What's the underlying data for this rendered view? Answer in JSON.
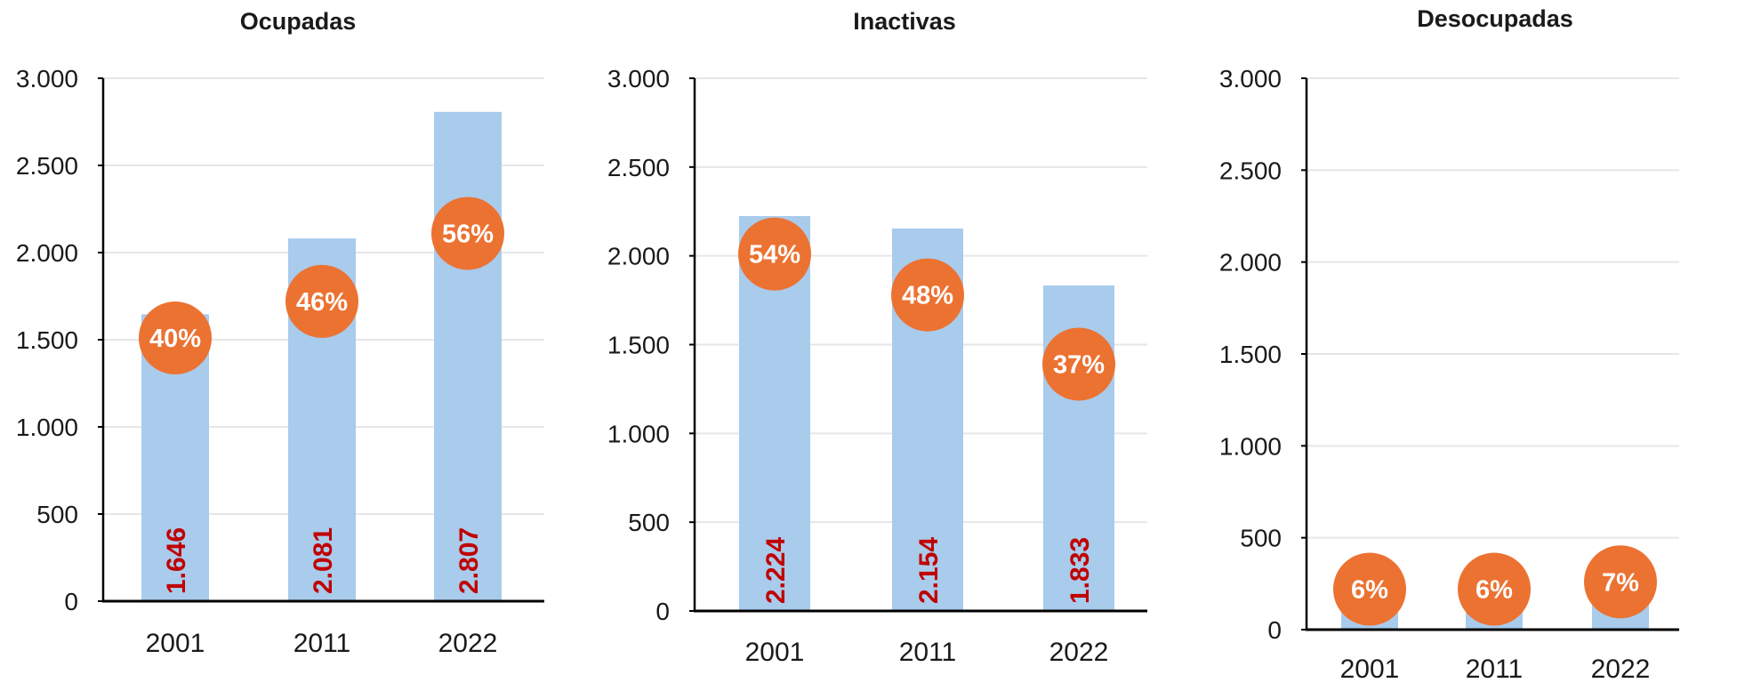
{
  "chart_data": [
    {
      "type": "bar",
      "title": "Ocupadas",
      "categories": [
        "2001",
        "2011",
        "2022"
      ],
      "values": [
        1646,
        2081,
        2807
      ],
      "value_labels": [
        "1.646",
        "2.081",
        "2.807"
      ],
      "percent_labels": [
        "40%",
        "46%",
        "56%"
      ],
      "percent_values": [
        1510,
        1720,
        2110
      ],
      "ylim": [
        0,
        3000
      ],
      "yticks": [
        0,
        500,
        1000,
        1500,
        2000,
        2500,
        3000
      ],
      "ytick_labels": [
        "0",
        "500",
        "1.000",
        "1.500",
        "2.000",
        "2.500",
        "3.000"
      ],
      "grid": true,
      "bar_color": "#a9cbec",
      "marker_color": "#ec7232",
      "value_label_color": "#c00000"
    },
    {
      "type": "bar",
      "title": "Inactivas",
      "categories": [
        "2001",
        "2011",
        "2022"
      ],
      "values": [
        2224,
        2154,
        1833
      ],
      "value_labels": [
        "2.224",
        "2.154",
        "1.833"
      ],
      "percent_labels": [
        "54%",
        "48%",
        "37%"
      ],
      "percent_values": [
        2010,
        1780,
        1390
      ],
      "ylim": [
        0,
        3000
      ],
      "yticks": [
        0,
        500,
        1000,
        1500,
        2000,
        2500,
        3000
      ],
      "ytick_labels": [
        "0",
        "500",
        "1.000",
        "1.500",
        "2.000",
        "2.500",
        "3.000"
      ],
      "grid": true,
      "bar_color": "#a9cbec",
      "marker_color": "#ec7232",
      "value_label_color": "#c00000"
    },
    {
      "type": "bar",
      "title": "Desocupadas",
      "categories": [
        "2001",
        "2011",
        "2022"
      ],
      "values": [
        230,
        225,
        275
      ],
      "value_labels": [
        "",
        "",
        ""
      ],
      "percent_labels": [
        "6%",
        "6%",
        "7%"
      ],
      "percent_values": [
        220,
        220,
        260
      ],
      "ylim": [
        0,
        3000
      ],
      "yticks": [
        0,
        500,
        1000,
        1500,
        2000,
        2500,
        3000
      ],
      "ytick_labels": [
        "0",
        "500",
        "1.000",
        "1.500",
        "2.000",
        "2.500",
        "3.000"
      ],
      "grid": true,
      "bar_color": "#a9cbec",
      "marker_color": "#ec7232",
      "value_label_color": "#c00000"
    }
  ]
}
